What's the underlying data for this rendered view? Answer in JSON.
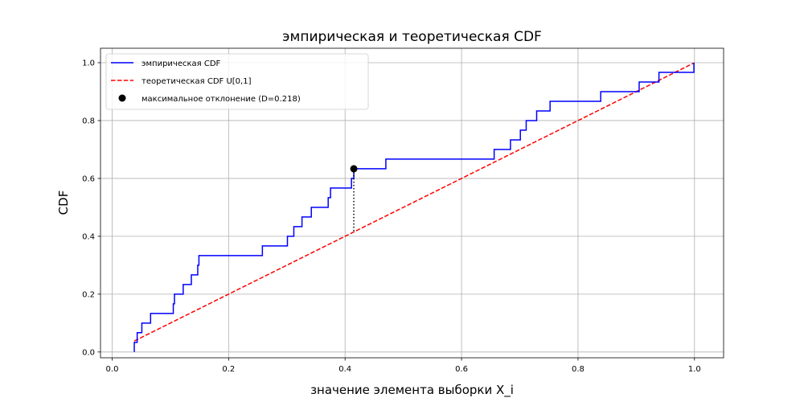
{
  "chart_data": {
    "type": "line",
    "title": "эмпирическая и теоретическая CDF",
    "xlabel": "значение элемента выборки X_i",
    "ylabel": "CDF",
    "xlim": [
      -0.02,
      1.05
    ],
    "ylim": [
      -0.02,
      1.05
    ],
    "xticks": [
      0.0,
      0.2,
      0.4,
      0.6,
      0.8,
      1.0
    ],
    "xtick_labels": [
      "0.0",
      "0.2",
      "0.4",
      "0.6",
      "0.8",
      "1.0"
    ],
    "yticks": [
      0.0,
      0.2,
      0.4,
      0.6,
      0.8,
      1.0
    ],
    "ytick_labels": [
      "0.0",
      "0.2",
      "0.4",
      "0.6",
      "0.8",
      "1.0"
    ],
    "grid": true,
    "legend_position": "top-left",
    "series": [
      {
        "name": "эмпирическая CDF",
        "style": "step",
        "color": "#0000ff",
        "x": [
          0.038,
          0.043,
          0.051,
          0.066,
          0.105,
          0.107,
          0.122,
          0.136,
          0.147,
          0.149,
          0.258,
          0.301,
          0.312,
          0.315,
          0.326,
          0.342,
          0.371,
          0.375,
          0.411,
          0.415,
          0.47,
          0.656,
          0.684,
          0.701,
          0.706,
          0.711,
          0.729,
          0.752,
          0.839,
          0.905,
          0.939,
          0.999
        ],
        "y": [
          0.0333,
          0.0667,
          0.1,
          0.1333,
          0.1667,
          0.2,
          0.2333,
          0.2667,
          0.3,
          0.3333,
          0.3667,
          0.4,
          0.4333,
          0.4333,
          0.4667,
          0.5,
          0.5333,
          0.5667,
          0.6,
          0.6333,
          0.6667,
          0.7,
          0.7333,
          0.7667,
          0.7667,
          0.8,
          0.8333,
          0.8667,
          0.9,
          0.9333,
          0.9667,
          1.0
        ]
      },
      {
        "name": "теоретическая CDF U[0,1]",
        "style": "dashed",
        "color": "#ff0000",
        "x": [
          0.038,
          0.999
        ],
        "y": [
          0.038,
          0.999
        ]
      }
    ],
    "max_deviation": {
      "name": "максимальное отклонение (D=0.218)",
      "color": "#000000",
      "x": 0.415,
      "y_empirical": 0.6333,
      "y_theoretical": 0.415
    }
  }
}
